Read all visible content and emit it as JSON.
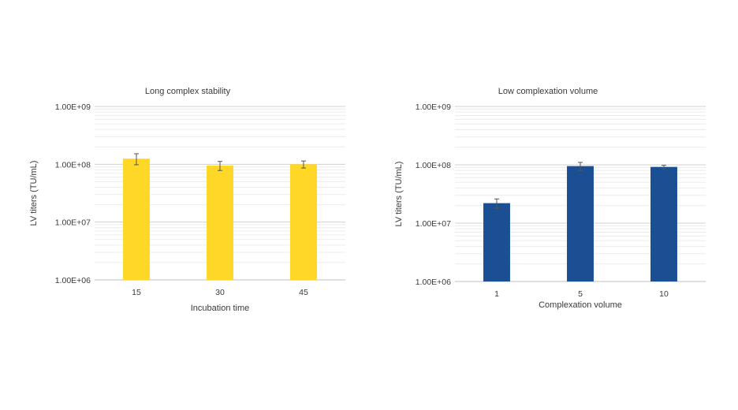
{
  "chart_data": [
    {
      "type": "bar",
      "title": "Long complex stability",
      "xlabel": "Incubation time",
      "ylabel": "LV titers (TU/mL)",
      "yscale": "log",
      "ylim": [
        1000000,
        1000000000
      ],
      "ytick_labels": [
        "1.00E+06",
        "1.00E+07",
        "1.00E+08",
        "1.00E+09"
      ],
      "categories": [
        "15",
        "30",
        "45"
      ],
      "values": [
        125000000,
        95000000,
        100000000
      ],
      "error": [
        27000000,
        17000000,
        14000000
      ],
      "color": "#FFD726",
      "grid": "minor+major horizontal",
      "legend": "none"
    },
    {
      "type": "bar",
      "title": "Low complexation volume",
      "xlabel": "Complexation volume",
      "ylabel": "LV titers (TU/mL)",
      "yscale": "log",
      "ylim": [
        1000000,
        1000000000
      ],
      "ytick_labels": [
        "1.00E+06",
        "1.00E+07",
        "1.00E+08",
        "1.00E+09"
      ],
      "categories": [
        "1",
        "5",
        "10"
      ],
      "values": [
        22000000,
        95000000,
        92000000
      ],
      "error": [
        4000000,
        15000000,
        6000000
      ],
      "color": "#1B4F93",
      "grid": "minor+major horizontal",
      "legend": "none"
    }
  ]
}
